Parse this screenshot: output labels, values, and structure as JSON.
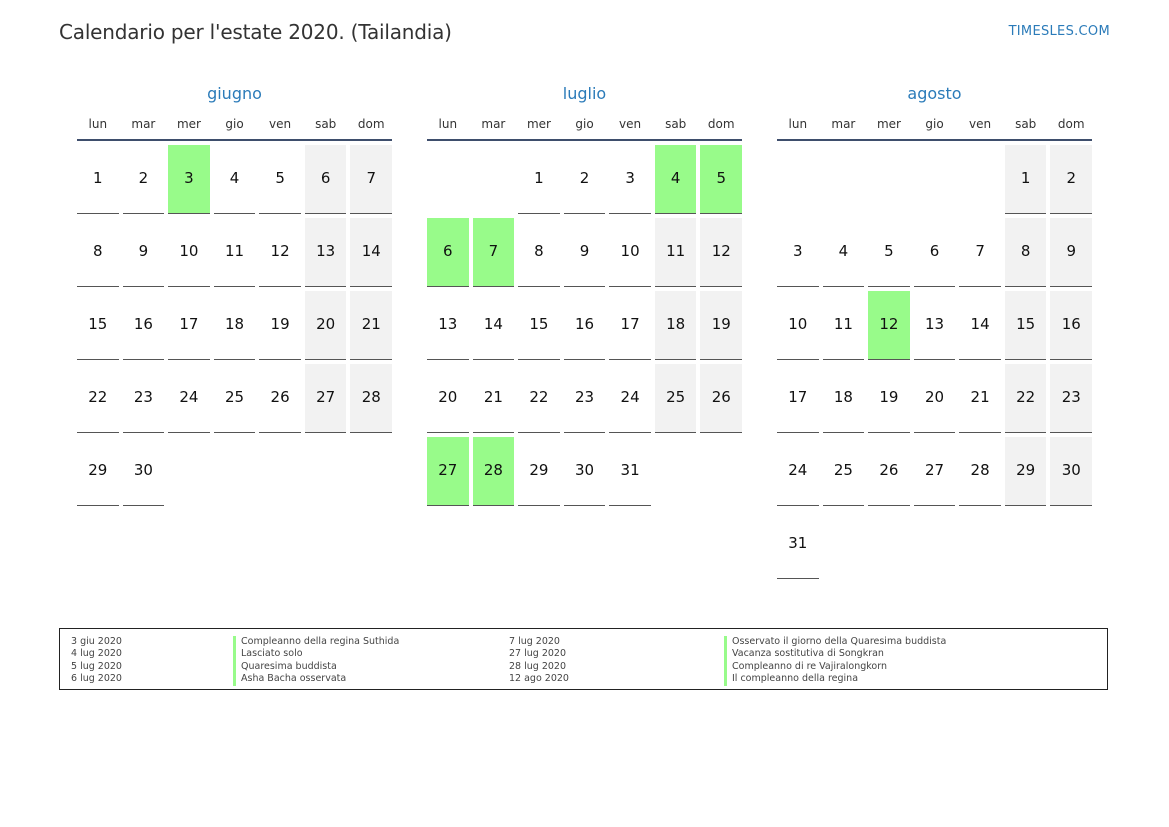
{
  "header": {
    "title": "Calendario per l'estate 2020. (Tailandia)",
    "site": "TIMESLES.COM"
  },
  "weekdays": [
    "lun",
    "mar",
    "mer",
    "gio",
    "ven",
    "sab",
    "dom"
  ],
  "colors": {
    "accent": "#2b7bb9",
    "holiday": "#98fb8a",
    "weekend": "#f2f2f2"
  },
  "months": [
    {
      "name": "giugno",
      "weeks": [
        [
          "1",
          "2",
          "3",
          "4",
          "5",
          "6",
          "7"
        ],
        [
          "8",
          "9",
          "10",
          "11",
          "12",
          "13",
          "14"
        ],
        [
          "15",
          "16",
          "17",
          "18",
          "19",
          "20",
          "21"
        ],
        [
          "22",
          "23",
          "24",
          "25",
          "26",
          "27",
          "28"
        ],
        [
          "29",
          "30",
          "",
          "",
          "",
          "",
          ""
        ]
      ],
      "holidays": [
        "3"
      ]
    },
    {
      "name": "luglio",
      "weeks": [
        [
          "",
          "",
          "1",
          "2",
          "3",
          "4",
          "5"
        ],
        [
          "6",
          "7",
          "8",
          "9",
          "10",
          "11",
          "12"
        ],
        [
          "13",
          "14",
          "15",
          "16",
          "17",
          "18",
          "19"
        ],
        [
          "20",
          "21",
          "22",
          "23",
          "24",
          "25",
          "26"
        ],
        [
          "27",
          "28",
          "29",
          "30",
          "31",
          "",
          ""
        ]
      ],
      "holidays": [
        "4",
        "5",
        "6",
        "7",
        "27",
        "28"
      ]
    },
    {
      "name": "agosto",
      "weeks": [
        [
          "",
          "",
          "",
          "",
          "",
          "1",
          "2"
        ],
        [
          "3",
          "4",
          "5",
          "6",
          "7",
          "8",
          "9"
        ],
        [
          "10",
          "11",
          "12",
          "13",
          "14",
          "15",
          "16"
        ],
        [
          "17",
          "18",
          "19",
          "20",
          "21",
          "22",
          "23"
        ],
        [
          "24",
          "25",
          "26",
          "27",
          "28",
          "29",
          "30"
        ],
        [
          "31",
          "",
          "",
          "",
          "",
          "",
          ""
        ]
      ],
      "holidays": [
        "12"
      ]
    }
  ],
  "legend": {
    "left": {
      "dates": [
        "3 giu 2020",
        "4 lug 2020",
        "5 lug 2020",
        "6 lug 2020"
      ],
      "names": [
        "Compleanno della regina Suthida",
        "Lasciato solo",
        "Quaresima buddista",
        "Asha Bacha osservata"
      ]
    },
    "right": {
      "dates": [
        "7 lug 2020",
        "27 lug 2020",
        "28 lug 2020",
        "12 ago 2020"
      ],
      "names": [
        "Osservato il giorno della Quaresima buddista",
        "Vacanza sostitutiva di Songkran",
        "Compleanno di re Vajiralongkorn",
        "Il compleanno della regina"
      ]
    }
  }
}
